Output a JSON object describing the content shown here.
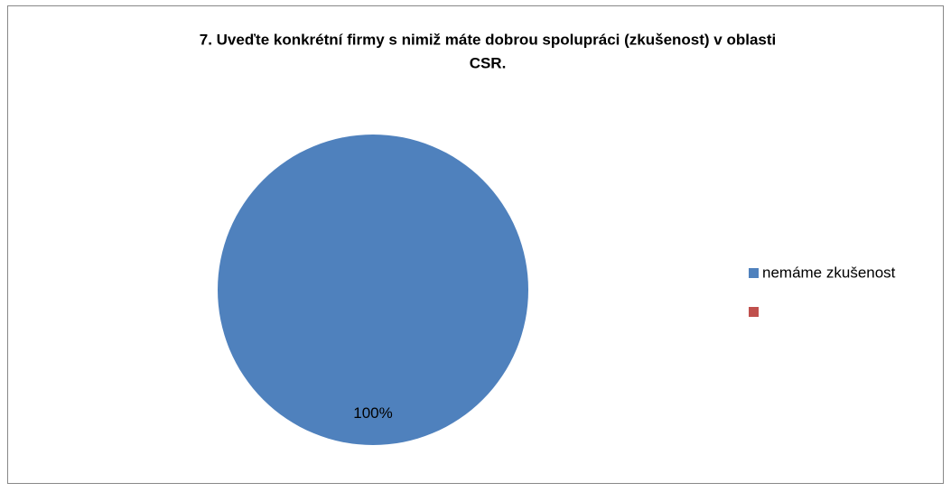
{
  "chart_data": {
    "type": "pie",
    "title": [
      "7. Uveďte konkrétní firmy s nimiž máte dobrou spolupráci (zkušenost) v oblasti",
      "CSR."
    ],
    "categories": [
      "nemáme zkušenost",
      null
    ],
    "values": [
      100,
      0
    ],
    "value_labels": [
      "100%",
      null
    ],
    "colors": [
      "#4f81bd",
      "#c0504d"
    ],
    "legend": "right"
  }
}
